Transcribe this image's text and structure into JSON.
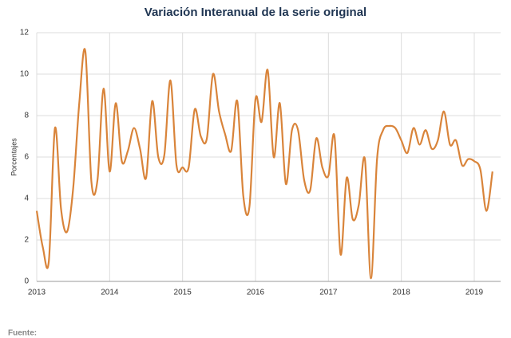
{
  "chart_data": {
    "type": "line",
    "title": "Variación Interanual de la serie original",
    "ylabel": "Porcentajes",
    "source": "Fuente:",
    "categories": [
      "2013",
      null,
      null,
      null,
      null,
      null,
      null,
      null,
      null,
      null,
      null,
      null,
      "2014",
      null,
      null,
      null,
      null,
      null,
      null,
      null,
      null,
      null,
      null,
      null,
      "2015",
      null,
      null,
      null,
      null,
      null,
      null,
      null,
      null,
      null,
      null,
      null,
      "2016",
      null,
      null,
      null,
      null,
      null,
      null,
      null,
      null,
      null,
      null,
      null,
      "2017",
      null,
      null,
      null,
      null,
      null,
      null,
      null,
      null,
      null,
      null,
      null,
      "2018",
      null,
      null,
      null,
      null,
      null,
      null,
      null,
      null,
      null,
      null,
      null,
      "2019",
      null,
      null,
      null
    ],
    "series": [
      {
        "name": "Variación",
        "color": "#d9843a",
        "values": [
          3.4,
          1.65,
          1.0,
          7.4,
          3.5,
          2.4,
          4.5,
          8.6,
          11.1,
          4.8,
          4.9,
          9.3,
          5.3,
          8.6,
          5.8,
          6.3,
          7.4,
          6.4,
          5.0,
          8.7,
          6.0,
          6.1,
          9.7,
          5.6,
          5.5,
          5.5,
          8.3,
          7.0,
          6.9,
          10.0,
          8.2,
          7.1,
          6.3,
          8.7,
          4.1,
          3.6,
          8.8,
          7.7,
          10.2,
          6.0,
          8.6,
          4.7,
          7.3,
          7.3,
          4.9,
          4.4,
          6.9,
          5.5,
          5.1,
          7.0,
          1.3,
          5.0,
          3.0,
          3.7,
          5.9,
          0.15,
          5.9,
          7.3,
          7.5,
          7.4,
          6.8,
          6.2,
          7.4,
          6.6,
          7.3,
          6.4,
          6.8,
          8.2,
          6.6,
          6.8,
          5.6,
          5.9,
          5.8,
          5.4,
          3.4,
          5.3
        ]
      }
    ],
    "ylim": [
      0,
      12
    ],
    "yticks": [
      0,
      2,
      4,
      6,
      8,
      10,
      12
    ],
    "grid": true
  }
}
